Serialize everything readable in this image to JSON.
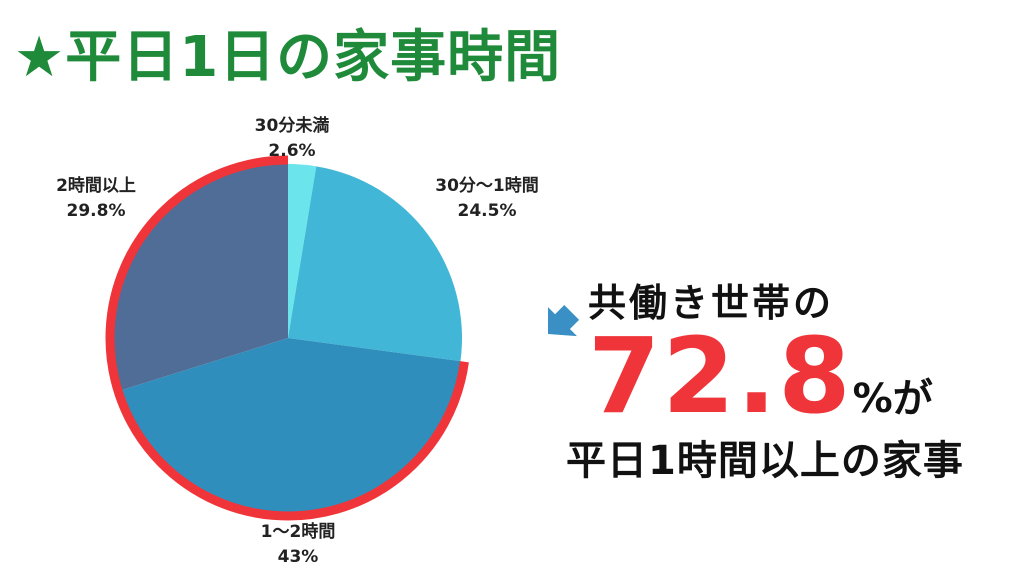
{
  "title": "★平日1日の家事時間",
  "colors": {
    "title": "#1e8a3a",
    "highlight": "#f0353a",
    "arrow": "#3a8fc4",
    "slices": [
      "#6be4ec",
      "#42b6d6",
      "#2f8ebc",
      "#4f6d96"
    ]
  },
  "chart_data": {
    "type": "pie",
    "start_angle_deg": 0,
    "direction": "clockwise",
    "slices": [
      {
        "label": "30分未満",
        "value": 2.6,
        "value_label": "2.6%"
      },
      {
        "label": "30分～1時間",
        "value": 24.5,
        "value_label": "24.5%"
      },
      {
        "label": "1～2時間",
        "value": 43,
        "value_label": "43%"
      },
      {
        "label": "2時間以上",
        "value": 29.8,
        "value_label": "29.8%"
      }
    ],
    "highlighted_slices": [
      "1～2時間",
      "2時間以上"
    ]
  },
  "message": {
    "line1": "共働き世帯の",
    "big_number": "72.8",
    "suffix": "%が",
    "line3": "平日1時間以上の家事"
  },
  "arrow_icon": "arrow-down-left-icon"
}
